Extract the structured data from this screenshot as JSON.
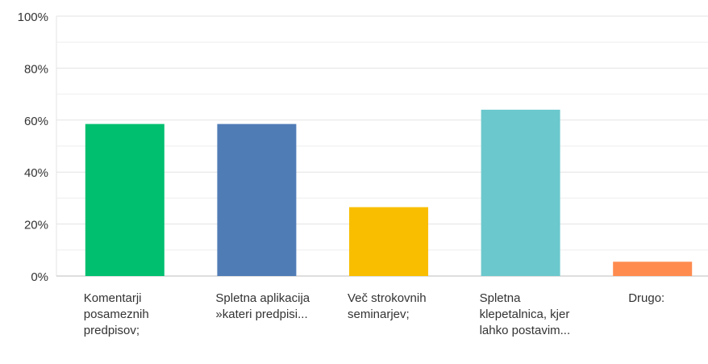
{
  "chart_data": {
    "type": "bar",
    "categories": [
      "Komentarji posameznih predpisov;",
      "Spletna aplikacija »kateri predpisi...",
      "Več strokovnih seminarjev;",
      "Spletna klepetalnica, kjer lahko postavim...",
      "Drugo:"
    ],
    "values": [
      58.5,
      58.5,
      26.5,
      64,
      5.5
    ],
    "colors": [
      "#00bf6f",
      "#507cb6",
      "#f9be00",
      "#6bc8cd",
      "#ff8b4f"
    ],
    "ylim": [
      0,
      100
    ],
    "yticks": [
      {
        "value": 0,
        "label": "0%"
      },
      {
        "value": 20,
        "label": "20%"
      },
      {
        "value": 40,
        "label": "40%"
      },
      {
        "value": 60,
        "label": "60%"
      },
      {
        "value": 80,
        "label": "80%"
      },
      {
        "value": 100,
        "label": "100%"
      }
    ],
    "minor_yticks": [
      10,
      30,
      50,
      70,
      90
    ],
    "grid": true
  }
}
